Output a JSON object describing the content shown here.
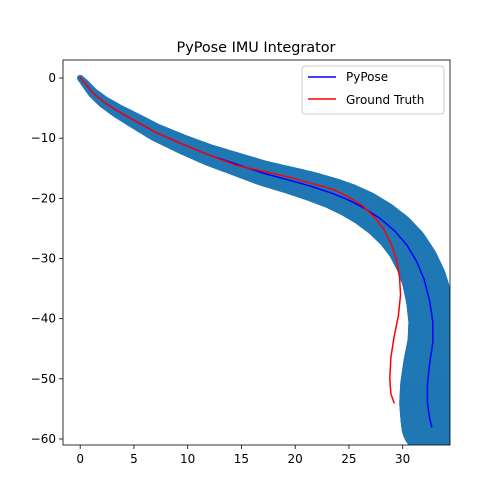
{
  "chart_data": {
    "type": "line",
    "title": "PyPose IMU Integrator",
    "xlabel": "",
    "ylabel": "",
    "xlim": [
      -1.6,
      34.4
    ],
    "ylim": [
      -61.0,
      3.0
    ],
    "x_ticks": [
      0,
      5,
      10,
      15,
      20,
      25,
      30
    ],
    "y_ticks": [
      0,
      -10,
      -20,
      -30,
      -40,
      -50,
      -60
    ],
    "grid": false,
    "legend": {
      "placement": "top-right"
    },
    "uncertainty_band": {
      "color": "#1f77b4",
      "width_start": 0.3,
      "width_end": 2.8
    },
    "series": [
      {
        "name": "PyPose",
        "color": "#0000ff",
        "x": [
          0.0,
          0.5,
          1.2,
          2.2,
          3.5,
          5.0,
          7.0,
          9.5,
          12.0,
          14.5,
          17.0,
          19.5,
          21.5,
          23.5,
          25.0,
          26.5,
          28.0,
          29.3,
          30.4,
          31.3,
          32.0,
          32.5,
          32.8,
          32.8,
          32.5,
          32.3,
          32.3,
          32.5,
          32.7
        ],
        "y": [
          0.0,
          -1.0,
          -2.5,
          -4.0,
          -5.5,
          -7.0,
          -9.0,
          -11.0,
          -12.8,
          -14.3,
          -15.8,
          -17.0,
          -18.0,
          -19.2,
          -20.3,
          -21.7,
          -23.5,
          -25.5,
          -27.8,
          -30.5,
          -33.5,
          -37.0,
          -40.5,
          -44.0,
          -47.5,
          -51.0,
          -54.0,
          -56.5,
          -58.0
        ]
      },
      {
        "name": "Ground Truth",
        "color": "#ff0000",
        "x": [
          0.0,
          0.5,
          1.2,
          2.2,
          3.5,
          5.0,
          7.0,
          9.5,
          12.0,
          14.5,
          17.0,
          19.5,
          21.5,
          23.5,
          25.0,
          26.3,
          27.3,
          28.2,
          28.9,
          29.4,
          29.7,
          29.8,
          29.6,
          29.2,
          28.9,
          28.8,
          28.9,
          29.2
        ],
        "y": [
          0.0,
          -1.0,
          -2.5,
          -4.0,
          -5.5,
          -7.0,
          -9.0,
          -11.0,
          -12.8,
          -14.5,
          -15.5,
          -16.5,
          -17.5,
          -18.5,
          -19.8,
          -21.3,
          -23.0,
          -25.0,
          -27.5,
          -30.0,
          -33.0,
          -36.0,
          -39.5,
          -43.0,
          -46.5,
          -50.0,
          -52.5,
          -54.0
        ]
      }
    ]
  }
}
